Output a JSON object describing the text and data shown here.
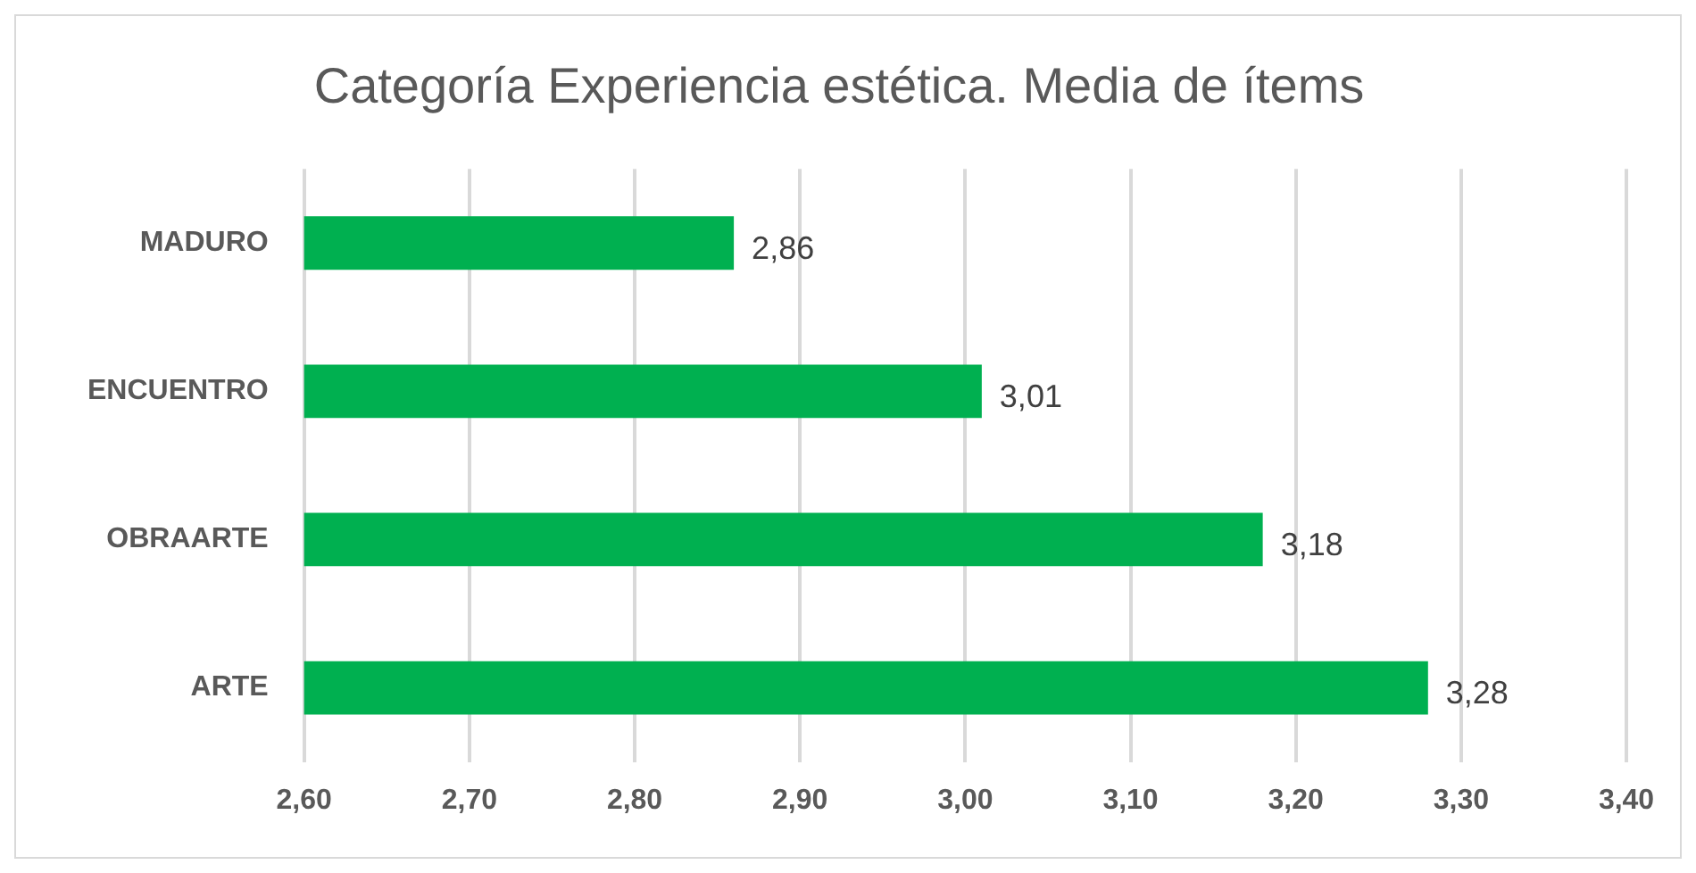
{
  "chart_data": {
    "type": "bar",
    "orientation": "horizontal",
    "title": "Categoría Experiencia estética. Media de ítems",
    "categories": [
      "MADURO",
      "ENCUENTRO",
      "OBRAARTE",
      "ARTE"
    ],
    "values": [
      2.86,
      3.01,
      3.18,
      3.28
    ],
    "value_labels": [
      "2,86",
      "3,01",
      "3,18",
      "3,28"
    ],
    "color": "#00b050",
    "xlim": [
      2.6,
      3.4
    ],
    "xticks": [
      {
        "value": 2.6,
        "label": "2,60"
      },
      {
        "value": 2.7,
        "label": "2,70"
      },
      {
        "value": 2.8,
        "label": "2,80"
      },
      {
        "value": 2.9,
        "label": "2,90"
      },
      {
        "value": 3.0,
        "label": "3,00"
      },
      {
        "value": 3.1,
        "label": "3,10"
      },
      {
        "value": 3.2,
        "label": "3,20"
      },
      {
        "value": 3.3,
        "label": "3,30"
      },
      {
        "value": 3.4,
        "label": "3,40"
      }
    ],
    "grid": "x"
  }
}
